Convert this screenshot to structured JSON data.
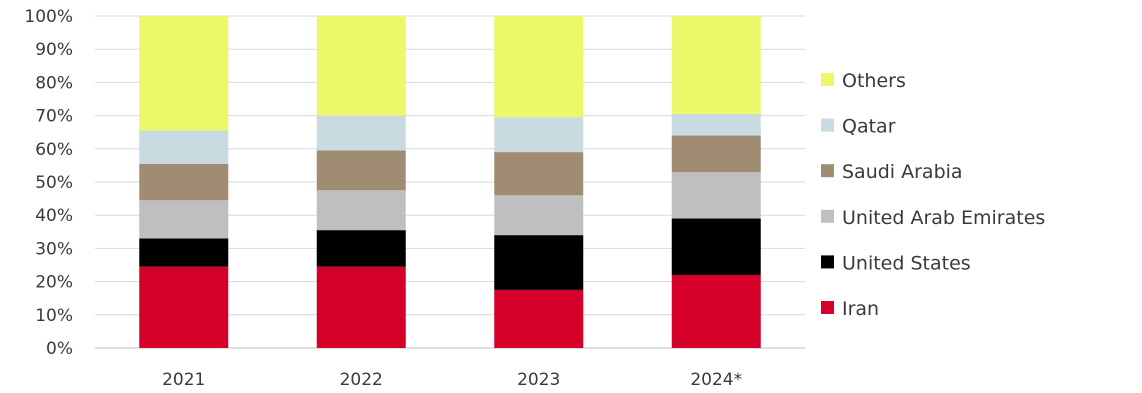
{
  "chart_data": {
    "type": "bar",
    "stacked": true,
    "percent_scale": true,
    "title": "",
    "xlabel": "",
    "ylabel": "",
    "ylim": [
      0,
      100
    ],
    "y_ticks": [
      "0%",
      "10%",
      "20%",
      "30%",
      "40%",
      "50%",
      "60%",
      "70%",
      "80%",
      "90%",
      "100%"
    ],
    "grid": true,
    "legend_position": "right",
    "categories": [
      "2021",
      "2022",
      "2023",
      "2024*"
    ],
    "series": [
      {
        "name": "Iran",
        "color": "#d4002a",
        "values": [
          24.5,
          24.5,
          17.5,
          22
        ]
      },
      {
        "name": "United States",
        "color": "#000000",
        "values": [
          8.5,
          11,
          16.5,
          17
        ]
      },
      {
        "name": "United Arab Emirates",
        "color": "#bfbfbf",
        "values": [
          11.5,
          12,
          12,
          14
        ]
      },
      {
        "name": "Saudi Arabia",
        "color": "#a08c72",
        "values": [
          11,
          12,
          13,
          11
        ]
      },
      {
        "name": "Qatar",
        "color": "#c9dbe0",
        "values": [
          10,
          10.5,
          10.5,
          6.5
        ]
      },
      {
        "name": "Others",
        "color": "#ecf76a",
        "values": [
          34.5,
          30,
          30.5,
          29.5
        ]
      }
    ],
    "legend_order": [
      "Others",
      "Qatar",
      "Saudi Arabia",
      "United Arab Emirates",
      "United States",
      "Iran"
    ]
  }
}
